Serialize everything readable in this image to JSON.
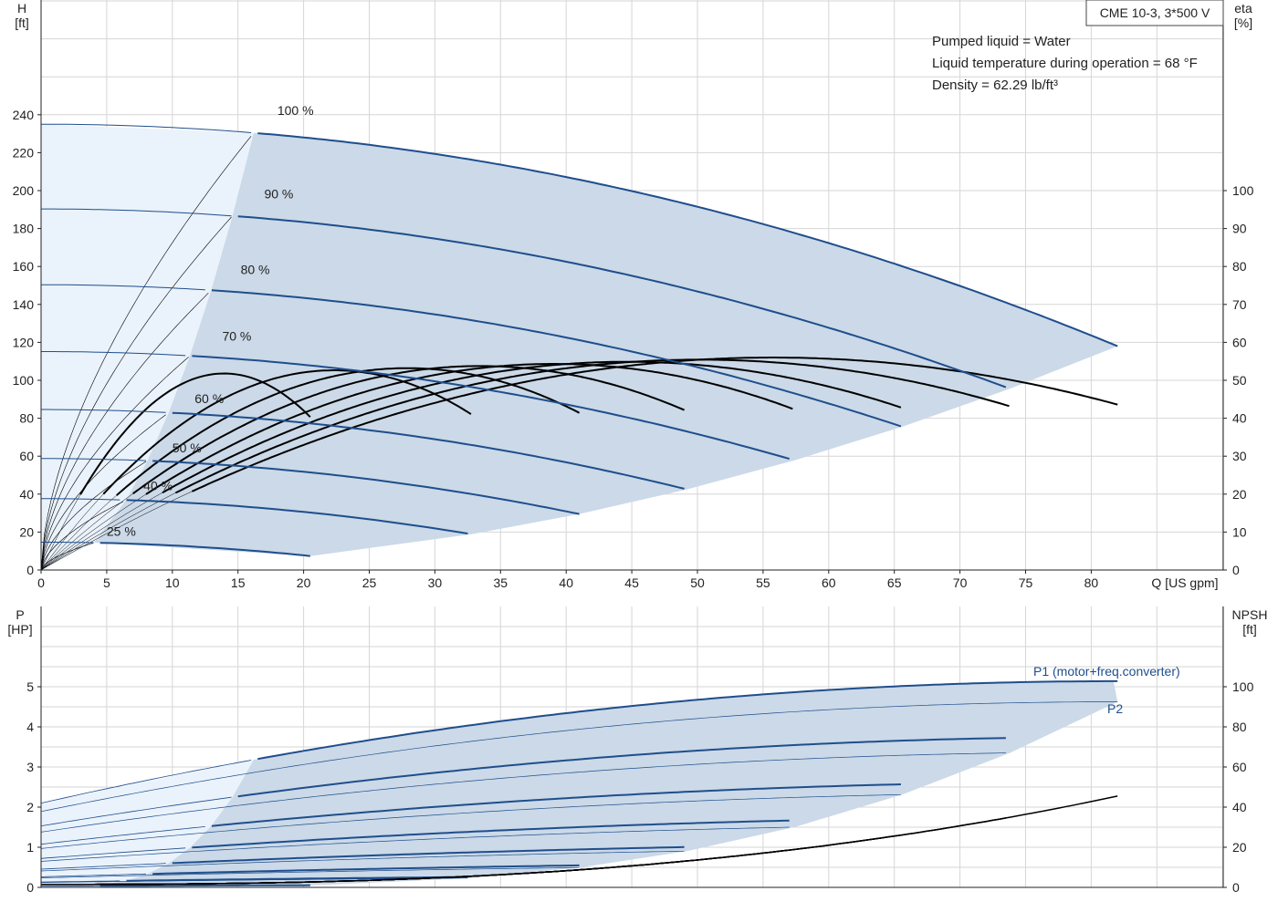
{
  "title_box": "CME 10-3, 3*500 V",
  "info": [
    "Pumped liquid = Water",
    "Liquid temperature during operation = 68 °F",
    "Density = 62.29 lb/ft³"
  ],
  "colors": {
    "region": "#cbd9e8",
    "region_light": "#eaf2fb",
    "curve_blue": "#1f4e8c",
    "eff": "#000000",
    "grid": "#d6d6d6"
  },
  "chart_data": [
    {
      "type": "line",
      "y_label": [
        "H",
        "[ft]"
      ],
      "y2_label": [
        "eta",
        "[%]"
      ],
      "x_label": "Q [US gpm]",
      "xlim": [
        0,
        90
      ],
      "x_ticks": [
        0,
        5,
        10,
        15,
        20,
        25,
        30,
        35,
        40,
        45,
        50,
        55,
        60,
        65,
        70,
        75,
        80
      ],
      "ylim": [
        0,
        300
      ],
      "y_ticks": [
        0,
        20,
        40,
        60,
        80,
        100,
        120,
        140,
        160,
        180,
        200,
        220,
        240
      ],
      "y2_ticks": [
        0,
        10,
        20,
        30,
        40,
        50,
        60,
        70,
        80,
        90,
        100
      ],
      "speeds": [
        {
          "label": "100 %",
          "pct": 1.0,
          "label_pos": [
            18,
            240
          ]
        },
        {
          "label": "90 %",
          "pct": 0.9,
          "label_pos": [
            17,
            196
          ]
        },
        {
          "label": "80 %",
          "pct": 0.8,
          "label_pos": [
            15.2,
            156
          ]
        },
        {
          "label": "70 %",
          "pct": 0.7,
          "label_pos": [
            13.8,
            121
          ]
        },
        {
          "label": "60 %",
          "pct": 0.6,
          "label_pos": [
            11.7,
            88
          ]
        },
        {
          "label": "50 %",
          "pct": 0.5,
          "label_pos": [
            10,
            62
          ]
        },
        {
          "label": "40 %",
          "pct": 0.4,
          "label_pos": [
            7.8,
            42
          ]
        },
        {
          "label": "25 %",
          "pct": 0.25,
          "label_pos": [
            5,
            18
          ]
        }
      ],
      "h_curve_full": {
        "h0": 235,
        "qmax": 82,
        "hmax_end": 118
      },
      "eta_peak": 56
    },
    {
      "type": "line",
      "y_label": [
        "P",
        "[HP]"
      ],
      "y2_label": [
        "NPSH",
        "[ft]"
      ],
      "xlim": [
        0,
        90
      ],
      "ylim": [
        0,
        6
      ],
      "y_ticks": [
        0,
        1,
        2,
        3,
        4,
        5
      ],
      "y2_ticks": [
        0,
        20,
        40,
        60,
        80,
        100
      ],
      "series_labels": [
        "P1 (motor+freq.converter)",
        "P2"
      ]
    }
  ]
}
